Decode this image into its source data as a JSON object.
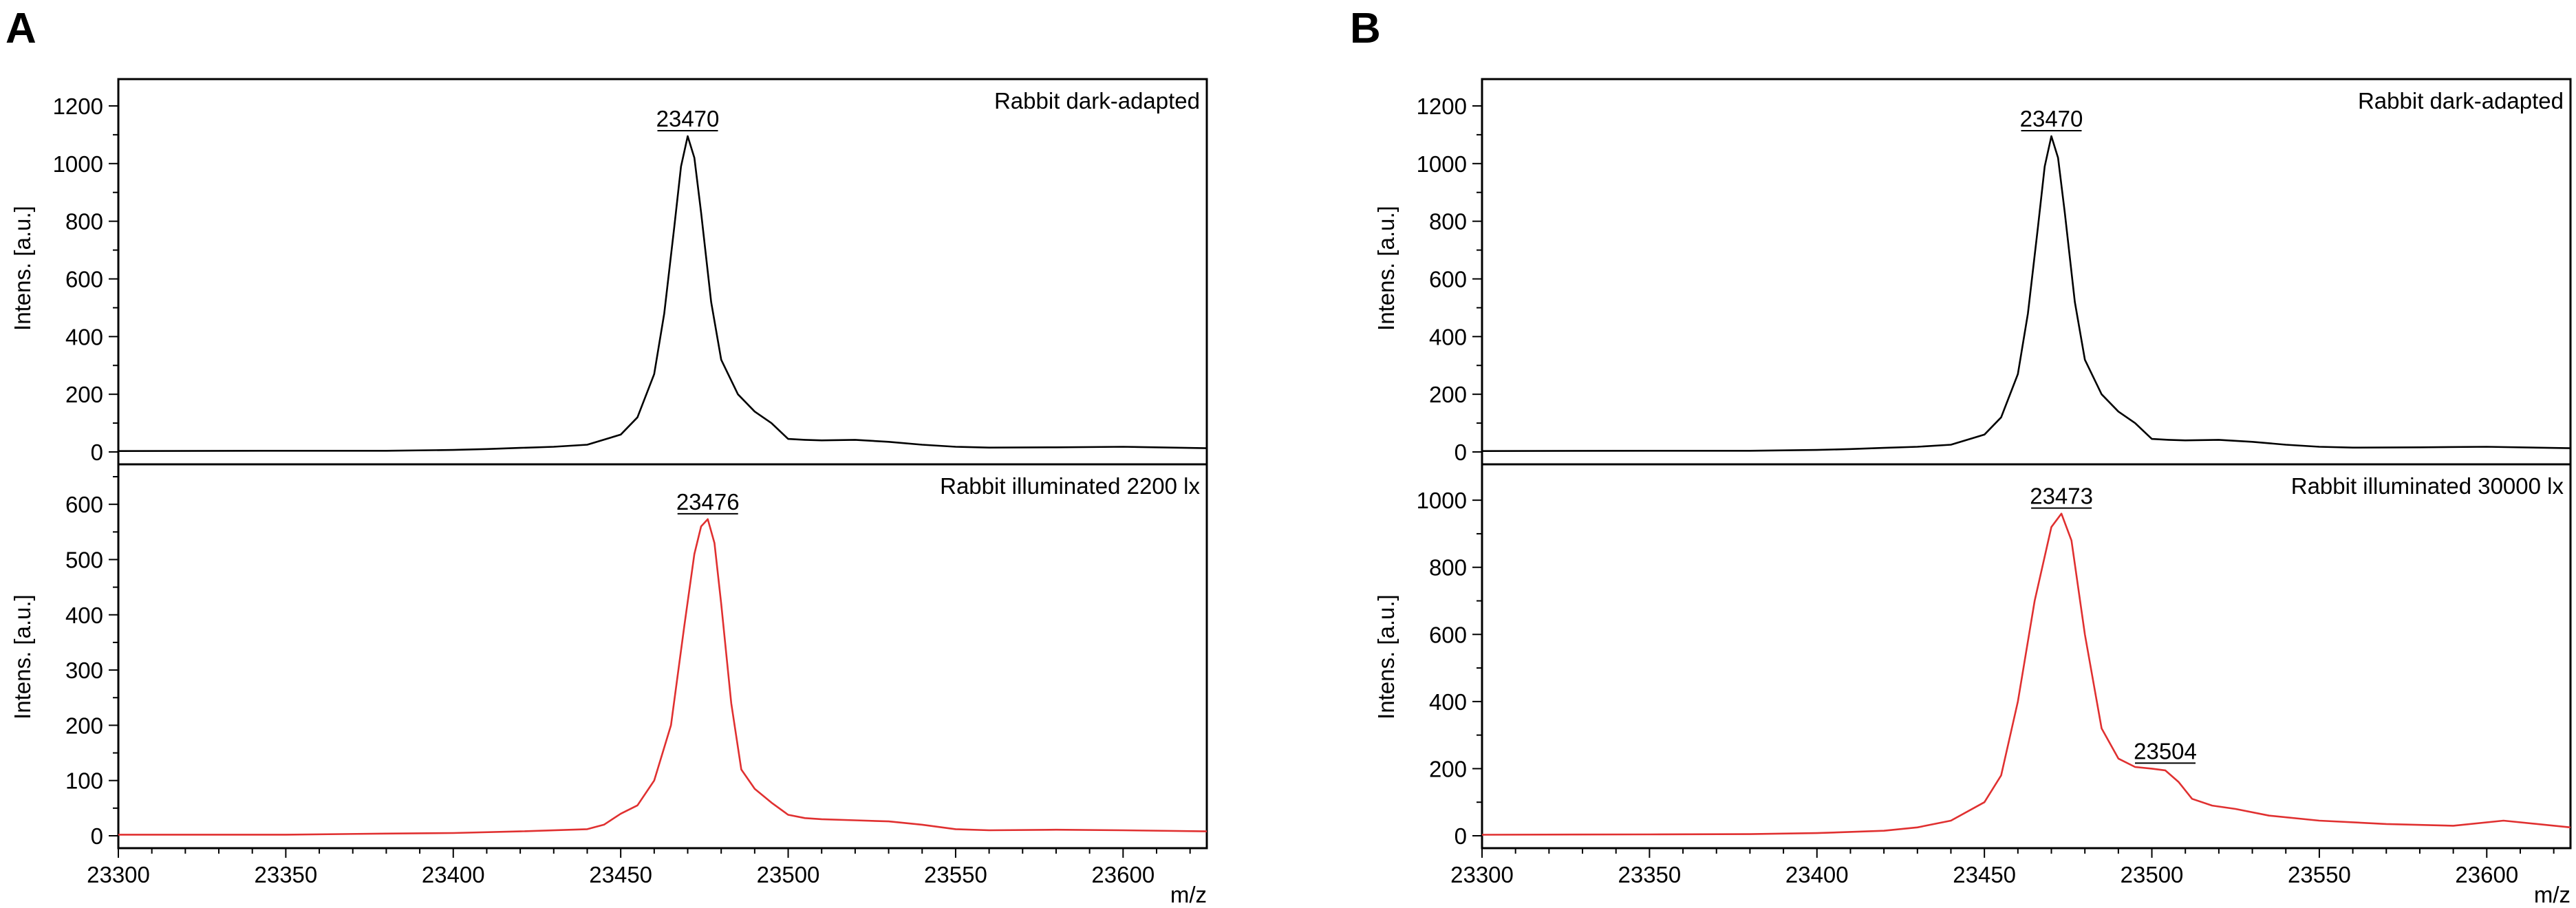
{
  "chart_data": [
    {
      "panel_label": "A",
      "type": "line",
      "xlabel": "m/z",
      "xlim": [
        23300,
        23625
      ],
      "xticks": [
        23300,
        23350,
        23400,
        23450,
        23500,
        23550,
        23600
      ],
      "xtick_labels": [
        "23300",
        "23350",
        "23400",
        "23450",
        "23500",
        "23550",
        "23600"
      ],
      "grid": false,
      "subplots": [
        {
          "label": "Rabbit dark-adapted",
          "ylabel": "Intens. [a.u.]",
          "ylim": [
            0,
            1250
          ],
          "yticks": [
            0,
            200,
            400,
            600,
            800,
            1000,
            1200
          ],
          "ytick_labels": [
            "0",
            "200",
            "400",
            "600",
            "800",
            "1000",
            "1200"
          ],
          "color": "#000000",
          "peaks": [
            {
              "label": "23470",
              "x": 23470,
              "y": 1095
            }
          ],
          "x": [
            23300,
            23350,
            23380,
            23400,
            23410,
            23420,
            23430,
            23440,
            23450,
            23455,
            23460,
            23463,
            23466,
            23468,
            23470,
            23472,
            23474,
            23477,
            23480,
            23485,
            23490,
            23495,
            23500,
            23505,
            23510,
            23520,
            23530,
            23540,
            23550,
            23560,
            23580,
            23600,
            23625
          ],
          "y": [
            3,
            4,
            4,
            7,
            10,
            14,
            18,
            25,
            60,
            120,
            270,
            480,
            780,
            990,
            1095,
            1020,
            830,
            520,
            320,
            200,
            140,
            100,
            45,
            42,
            40,
            42,
            35,
            25,
            18,
            15,
            16,
            18,
            13
          ]
        },
        {
          "label": "Rabbit illuminated 2200 lx",
          "ylabel": "Intens. [a.u.]",
          "ylim": [
            0,
            650
          ],
          "yticks": [
            0,
            100,
            200,
            300,
            400,
            500,
            600
          ],
          "ytick_labels": [
            "0",
            "100",
            "200",
            "300",
            "400",
            "500",
            "600"
          ],
          "color": "#e03030",
          "peaks": [
            {
              "label": "23476",
              "x": 23476,
              "y": 573
            }
          ],
          "x": [
            23300,
            23350,
            23380,
            23400,
            23420,
            23440,
            23445,
            23450,
            23455,
            23460,
            23465,
            23469,
            23472,
            23474,
            23476,
            23478,
            23480,
            23483,
            23486,
            23490,
            23495,
            23500,
            23505,
            23510,
            23520,
            23530,
            23540,
            23550,
            23560,
            23580,
            23600,
            23625
          ],
          "y": [
            2,
            2,
            4,
            5,
            8,
            12,
            20,
            40,
            55,
            100,
            200,
            380,
            510,
            560,
            573,
            530,
            420,
            240,
            120,
            85,
            60,
            38,
            32,
            30,
            28,
            26,
            20,
            12,
            10,
            11,
            10,
            8
          ]
        }
      ]
    },
    {
      "panel_label": "B",
      "type": "line",
      "xlabel": "m/z",
      "xlim": [
        23300,
        23625
      ],
      "xticks": [
        23300,
        23350,
        23400,
        23450,
        23500,
        23550,
        23600
      ],
      "xtick_labels": [
        "23300",
        "23350",
        "23400",
        "23450",
        "23500",
        "23550",
        "23600"
      ],
      "grid": false,
      "subplots": [
        {
          "label": "Rabbit dark-adapted",
          "ylabel": "Intens. [a.u.]",
          "ylim": [
            0,
            1250
          ],
          "yticks": [
            0,
            200,
            400,
            600,
            800,
            1000,
            1200
          ],
          "ytick_labels": [
            "0",
            "200",
            "400",
            "600",
            "800",
            "1000",
            "1200"
          ],
          "color": "#000000",
          "peaks": [
            {
              "label": "23470",
              "x": 23470,
              "y": 1095
            }
          ],
          "x": [
            23300,
            23350,
            23380,
            23400,
            23410,
            23420,
            23430,
            23440,
            23450,
            23455,
            23460,
            23463,
            23466,
            23468,
            23470,
            23472,
            23474,
            23477,
            23480,
            23485,
            23490,
            23495,
            23500,
            23505,
            23510,
            23520,
            23530,
            23540,
            23550,
            23560,
            23580,
            23600,
            23625
          ],
          "y": [
            3,
            4,
            4,
            7,
            10,
            14,
            18,
            25,
            60,
            120,
            270,
            480,
            780,
            990,
            1095,
            1020,
            830,
            520,
            320,
            200,
            140,
            100,
            45,
            42,
            40,
            42,
            35,
            25,
            18,
            15,
            16,
            18,
            13
          ]
        },
        {
          "label": "Rabbit illuminated 30000 lx",
          "ylabel": "Intens. [a.u.]",
          "ylim": [
            0,
            1070
          ],
          "yticks": [
            0,
            200,
            400,
            600,
            800,
            1000
          ],
          "ytick_labels": [
            "0",
            "200",
            "400",
            "600",
            "800",
            "1000"
          ],
          "color": "#e03030",
          "peaks": [
            {
              "label": "23473",
              "x": 23473,
              "y": 960
            },
            {
              "label": "23504",
              "x": 23504,
              "y": 200
            }
          ],
          "x": [
            23300,
            23350,
            23380,
            23400,
            23420,
            23430,
            23440,
            23450,
            23455,
            23460,
            23465,
            23470,
            23473,
            23476,
            23480,
            23485,
            23490,
            23495,
            23500,
            23504,
            23508,
            23512,
            23518,
            23525,
            23535,
            23550,
            23570,
            23590,
            23605,
            23625
          ],
          "y": [
            3,
            4,
            5,
            8,
            15,
            25,
            45,
            100,
            180,
            400,
            700,
            920,
            960,
            880,
            600,
            320,
            230,
            205,
            200,
            195,
            160,
            110,
            90,
            80,
            60,
            45,
            35,
            30,
            45,
            25
          ]
        }
      ]
    }
  ]
}
